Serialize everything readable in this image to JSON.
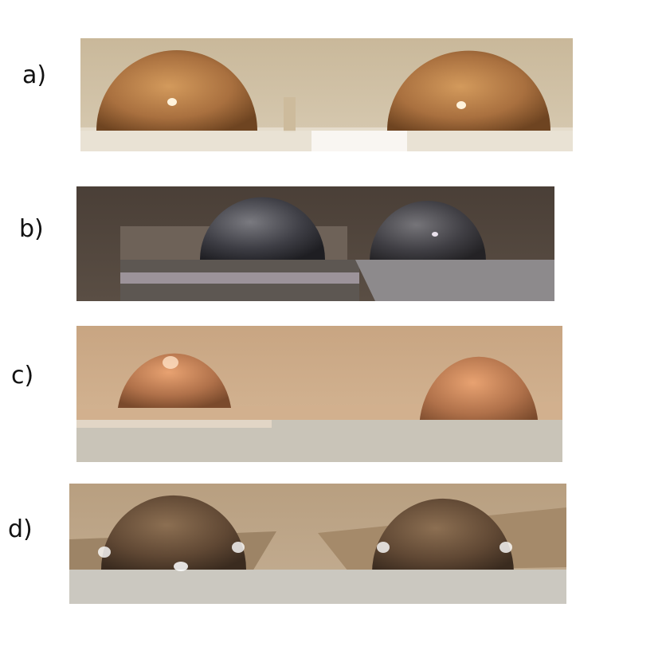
{
  "figure": {
    "panels": [
      {
        "label": "a)"
      },
      {
        "label": "b)"
      },
      {
        "label": "c)"
      },
      {
        "label": "d)"
      }
    ]
  }
}
